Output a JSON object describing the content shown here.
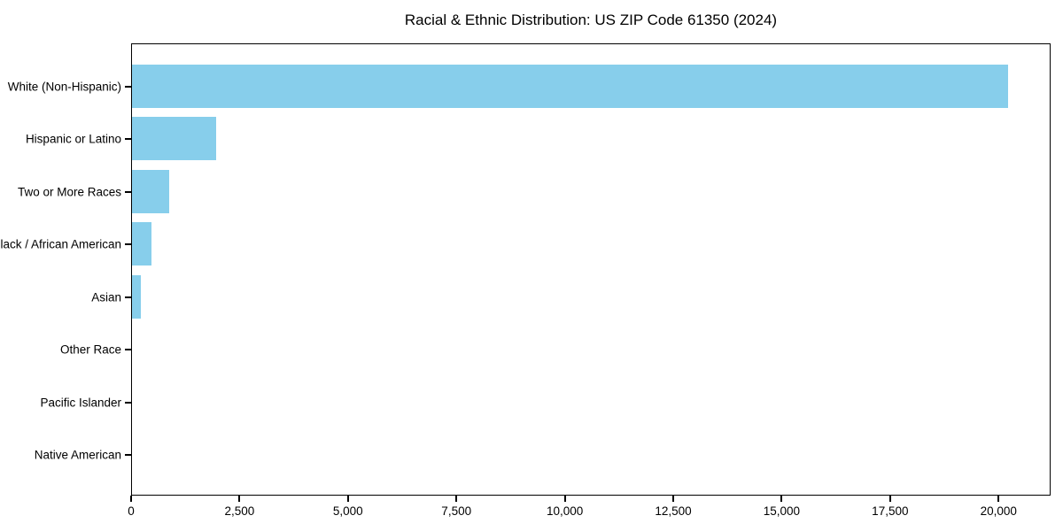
{
  "title": "Racial & Ethnic Distribution: US ZIP Code 61350 (2024)",
  "chart_data": {
    "type": "bar",
    "orientation": "horizontal",
    "title": "Racial & Ethnic Distribution: US ZIP Code 61350 (2024)",
    "xlabel": "",
    "ylabel": "",
    "categories": [
      "White (Non-Hispanic)",
      "Hispanic or Latino",
      "Two or More Races",
      "Black / African American",
      "Asian",
      "Other Race",
      "Pacific Islander",
      "Native American"
    ],
    "values": [
      20200,
      1950,
      850,
      450,
      200,
      0,
      0,
      0
    ],
    "xlim": [
      0,
      21200
    ],
    "xticks": [
      {
        "value": 0,
        "label": "0"
      },
      {
        "value": 2500,
        "label": "2,500"
      },
      {
        "value": 5000,
        "label": "5,000"
      },
      {
        "value": 7500,
        "label": "7,500"
      },
      {
        "value": 10000,
        "label": "10,000"
      },
      {
        "value": 12500,
        "label": "12,500"
      },
      {
        "value": 15000,
        "label": "15,000"
      },
      {
        "value": 17500,
        "label": "17,500"
      },
      {
        "value": 20000,
        "label": "20,000"
      }
    ],
    "grid": false,
    "legend": null,
    "colors": {
      "bar": "#87CEEB",
      "spine": "#000000",
      "text": "#000000",
      "background": "#ffffff"
    }
  }
}
